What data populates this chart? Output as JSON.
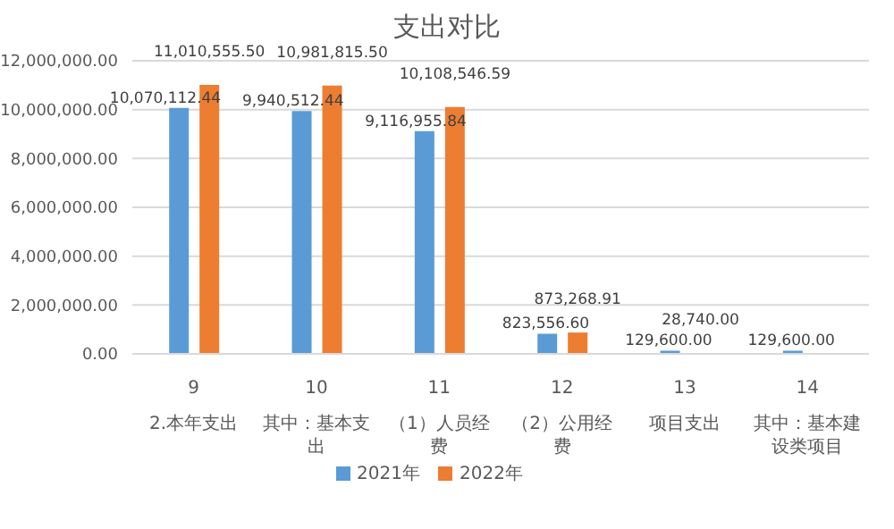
{
  "chart_data": {
    "type": "bar",
    "title": "支出对比",
    "categories": [
      "9\n2.本年支出",
      "10\n其中：基本支出",
      "11\n（1）人员经费",
      "12\n（2）公用经费",
      "13\n项目支出",
      "14\n其中：基本建设类项目"
    ],
    "series": [
      {
        "name": "2021年",
        "color": "#5b9bd5",
        "values": [
          10070112.44,
          9940512.44,
          9116955.84,
          823556.6,
          129600.0,
          129600.0
        ],
        "value_labels": [
          "10,070,112.44",
          "9,940,512.44",
          "9,116,955.84",
          "823,556.60",
          "129,600.00",
          "129,600.00"
        ]
      },
      {
        "name": "2022年",
        "color": "#ed7d31",
        "values": [
          11010555.5,
          10981815.5,
          10108546.59,
          873268.91,
          28740.0,
          null
        ],
        "value_labels": [
          "11,010,555.50",
          "10,981,815.50",
          "10,108,546.59",
          "873,268.91",
          "28,740.00",
          null
        ]
      }
    ],
    "ylim": [
      0,
      12000000
    ],
    "yticks": [
      {
        "value": 0,
        "label": "0.00"
      },
      {
        "value": 2000000,
        "label": "2,000,000.00"
      },
      {
        "value": 4000000,
        "label": "4,000,000.00"
      },
      {
        "value": 6000000,
        "label": "6,000,000.00"
      },
      {
        "value": 8000000,
        "label": "8,000,000.00"
      },
      {
        "value": 10000000,
        "label": "10,000,000.00"
      },
      {
        "value": 12000000,
        "label": "12,000,000.00"
      }
    ],
    "grid": "y",
    "legend": "bottom"
  }
}
